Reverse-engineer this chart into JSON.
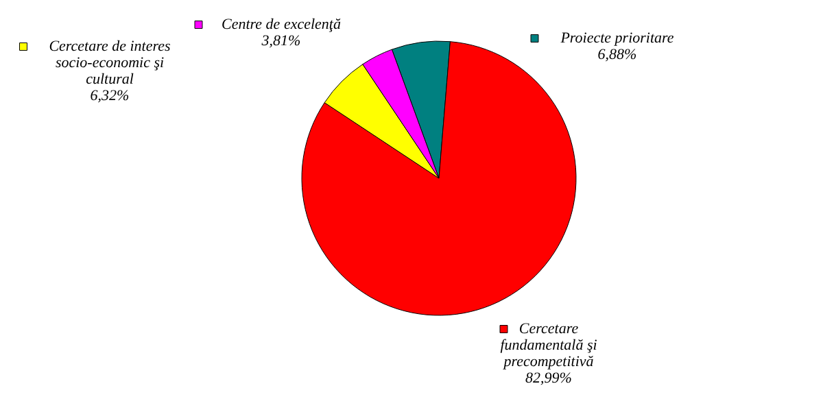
{
  "chart_data": {
    "type": "pie",
    "categories": [
      "Proiecte prioritare",
      "Cercetare fundamentală şi precompetitivă",
      "Cercetare de interes socio-economic şi cultural",
      "Centre de excelenţă"
    ],
    "values": [
      6.88,
      82.99,
      6.32,
      3.81
    ],
    "value_labels": [
      "6,88%",
      "82,99%",
      "6,32%",
      "3,81%"
    ],
    "colors": [
      "#008080",
      "#ff0000",
      "#ffff00",
      "#ff00ff"
    ],
    "legend": "bottom left"
  }
}
